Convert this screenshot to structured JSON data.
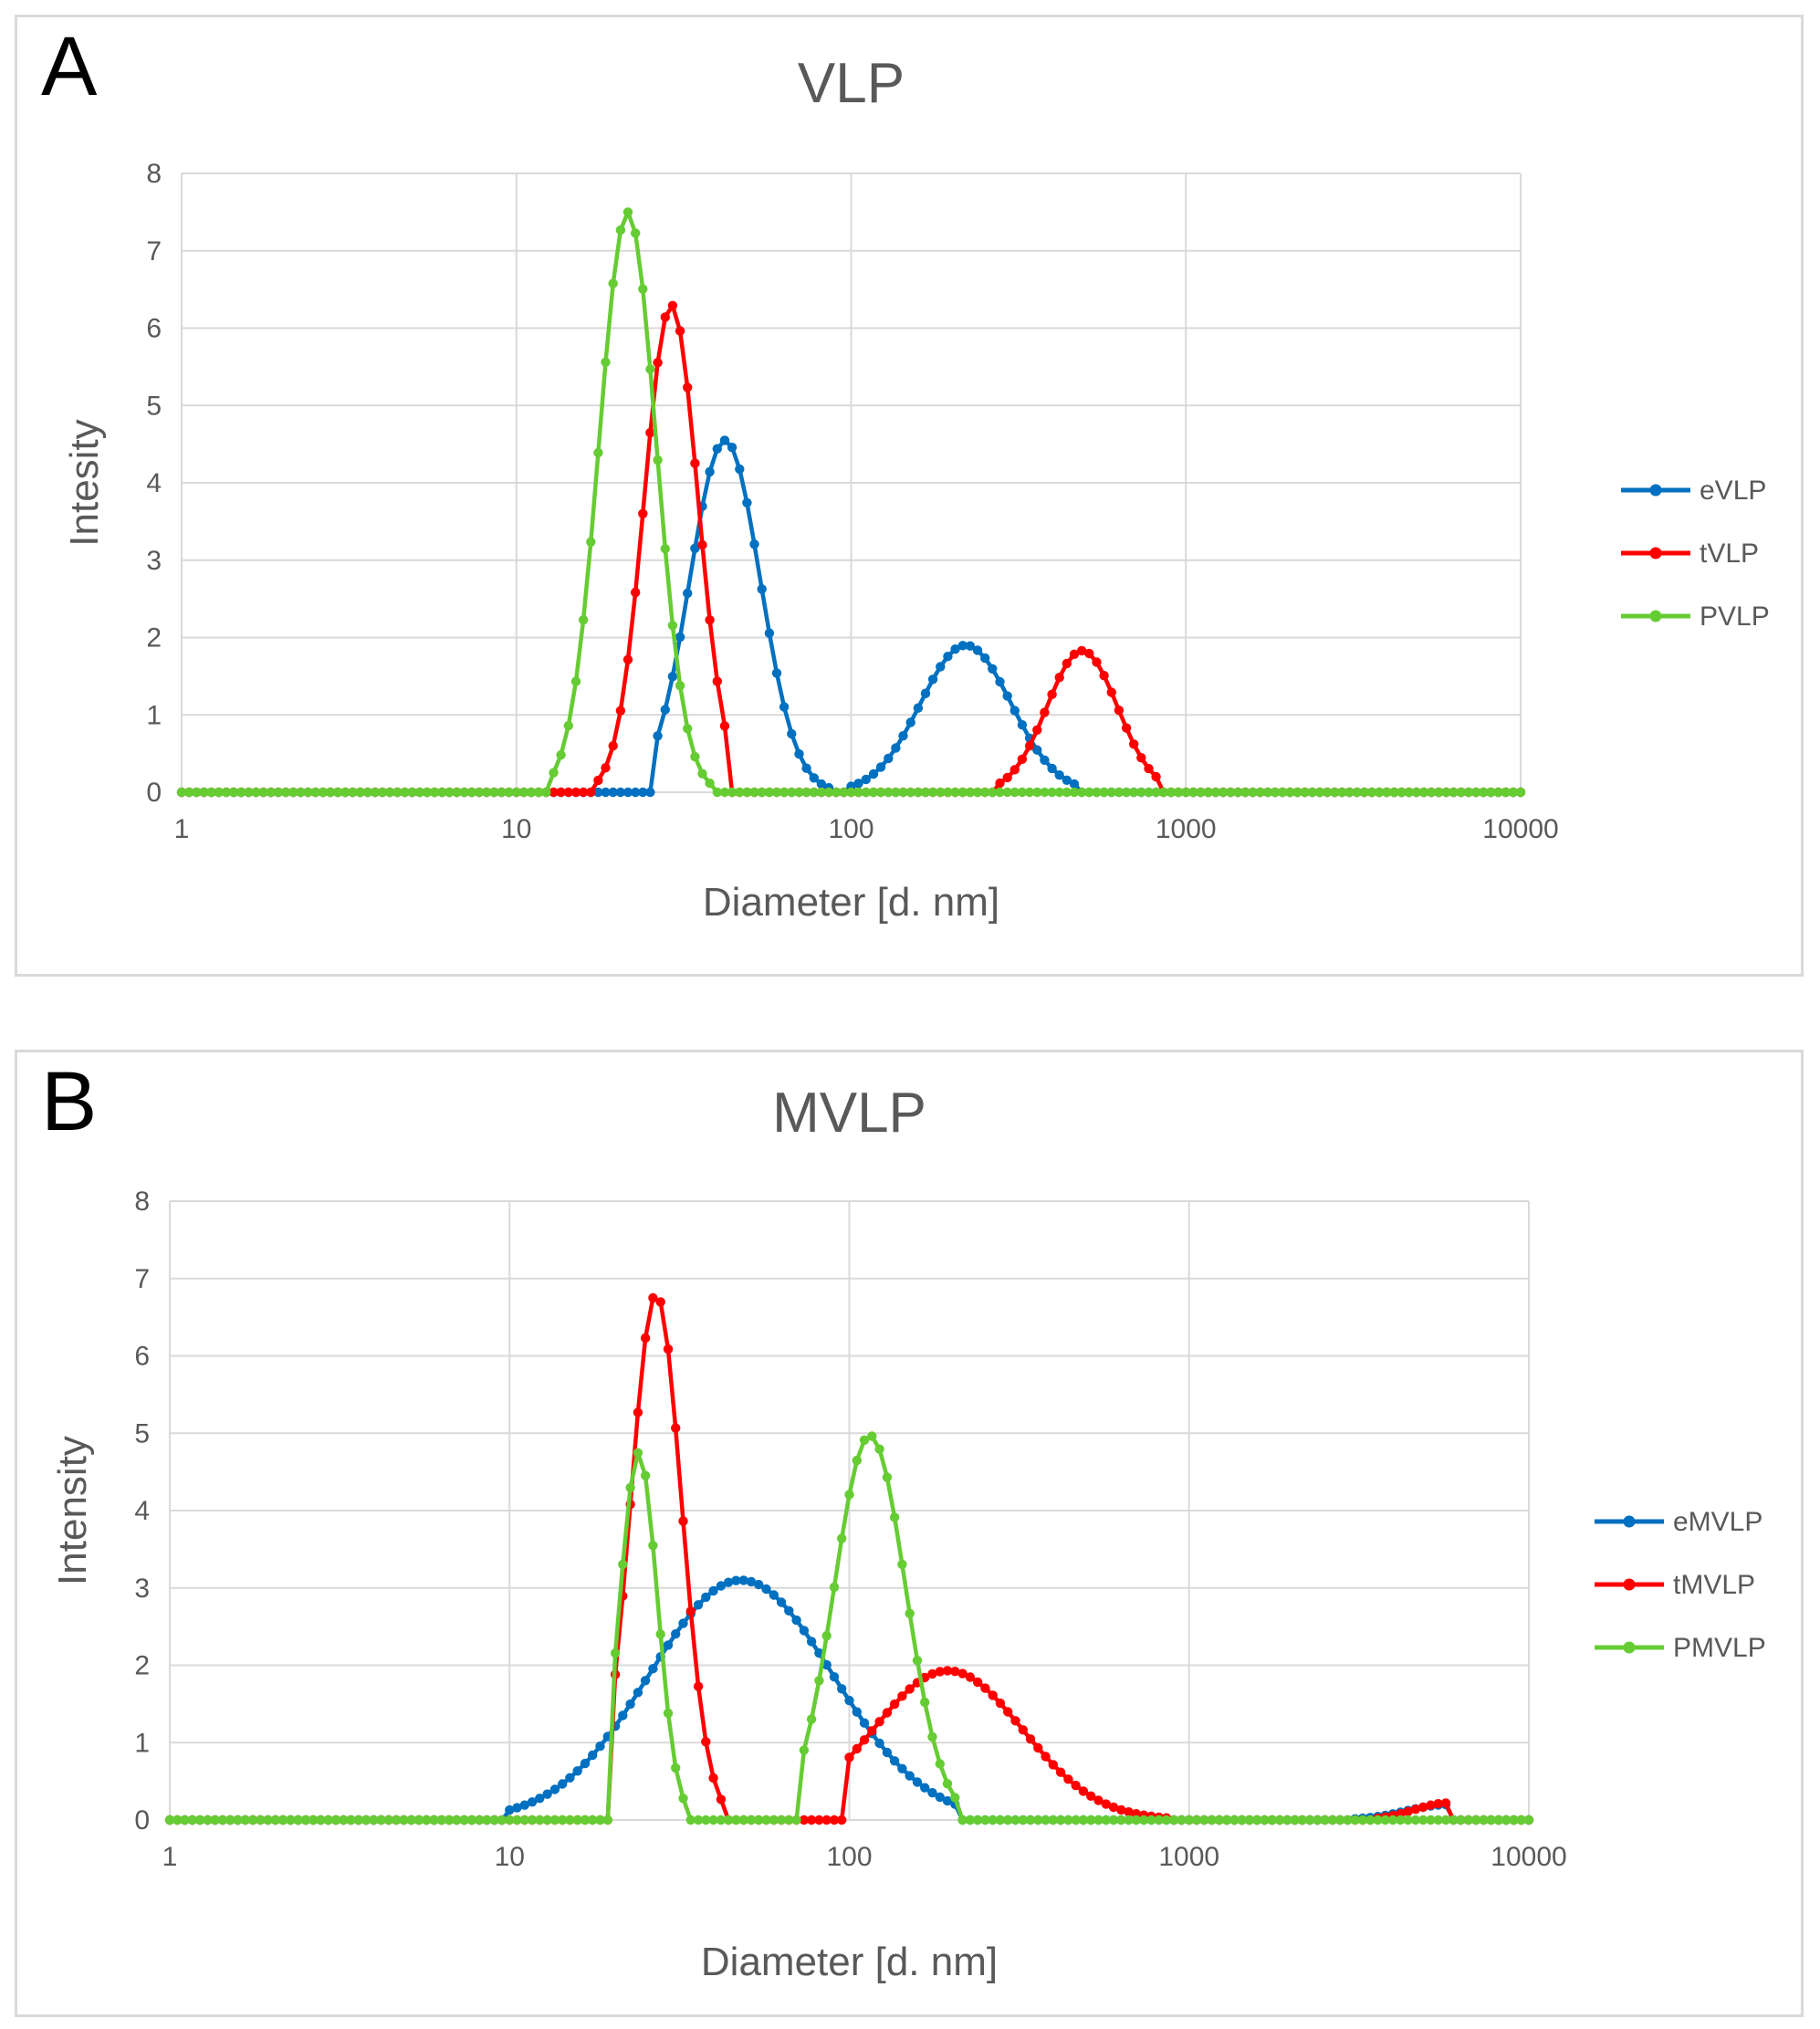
{
  "chart_data": [
    {
      "panel_label": "A",
      "type": "line",
      "title": "VLP",
      "xlabel": "Diameter [d. nm]",
      "ylabel": "Intesity",
      "x_scale": "log",
      "xlim": [
        1,
        10000
      ],
      "ylim": [
        0,
        8
      ],
      "x_ticks": [
        "1",
        "10",
        "100",
        "1000",
        "10000"
      ],
      "y_ticks": [
        "0",
        "1",
        "2",
        "3",
        "4",
        "5",
        "6",
        "7",
        "8"
      ],
      "grid": true,
      "legend_position": "right",
      "series": [
        {
          "name": "eVLP",
          "color": "#0070c0",
          "peaks": [
            {
              "center": 42,
              "height": 4.55,
              "sigma": 0.105,
              "min": 26,
              "max": 90
            },
            {
              "center": 220,
              "height": 1.9,
              "sigma": 0.135,
              "min": 100,
              "max": 470
            }
          ]
        },
        {
          "name": "tVLP",
          "color": "#ff0000",
          "peaks": [
            {
              "center": 29,
              "height": 6.3,
              "sigma": 0.08,
              "min": 17,
              "max": 44
            },
            {
              "center": 490,
              "height": 1.83,
              "sigma": 0.105,
              "min": 270,
              "max": 850
            }
          ]
        },
        {
          "name": "PVLP",
          "color": "#66cc33",
          "peaks": [
            {
              "center": 21.5,
              "height": 7.5,
              "sigma": 0.085,
              "min": 12.8,
              "max": 39
            }
          ]
        }
      ]
    },
    {
      "panel_label": "B",
      "type": "line",
      "title": "MVLP",
      "xlabel": "Diameter [d. nm]",
      "ylabel": "Intensity",
      "x_scale": "log",
      "xlim": [
        1,
        10000
      ],
      "ylim": [
        0,
        8
      ],
      "x_ticks": [
        "1",
        "10",
        "100",
        "1000",
        "10000"
      ],
      "y_ticks": [
        "0",
        "1",
        "2",
        "3",
        "4",
        "5",
        "6",
        "7",
        "8"
      ],
      "grid": true,
      "legend_position": "right",
      "series": [
        {
          "name": "eMVLP",
          "color": "#0070c0",
          "peaks": [
            {
              "center": 48,
              "height": 3.1,
              "sigma": 0.27,
              "min": 10,
              "max": 210
            },
            {
              "center": 5800,
              "height": 0.2,
              "sigma": 0.12,
              "min": 3000,
              "max": 5800
            }
          ]
        },
        {
          "name": "tMVLP",
          "color": "#ff0000",
          "peaks": [
            {
              "center": 27,
              "height": 6.8,
              "sigma": 0.075,
              "min": 20,
              "max": 42
            },
            {
              "center": 195,
              "height": 1.93,
              "sigma": 0.22,
              "min": 100,
              "max": 900
            },
            {
              "center": 5800,
              "height": 0.22,
              "sigma": 0.1,
              "min": 3500,
              "max": 5800
            }
          ]
        },
        {
          "name": "PMVLP",
          "color": "#66cc33",
          "peaks": [
            {
              "center": 24,
              "height": 4.75,
              "sigma": 0.055,
              "min": 20,
              "max": 33
            },
            {
              "center": 115,
              "height": 4.97,
              "sigma": 0.105,
              "min": 70,
              "max": 210
            }
          ]
        }
      ]
    }
  ]
}
